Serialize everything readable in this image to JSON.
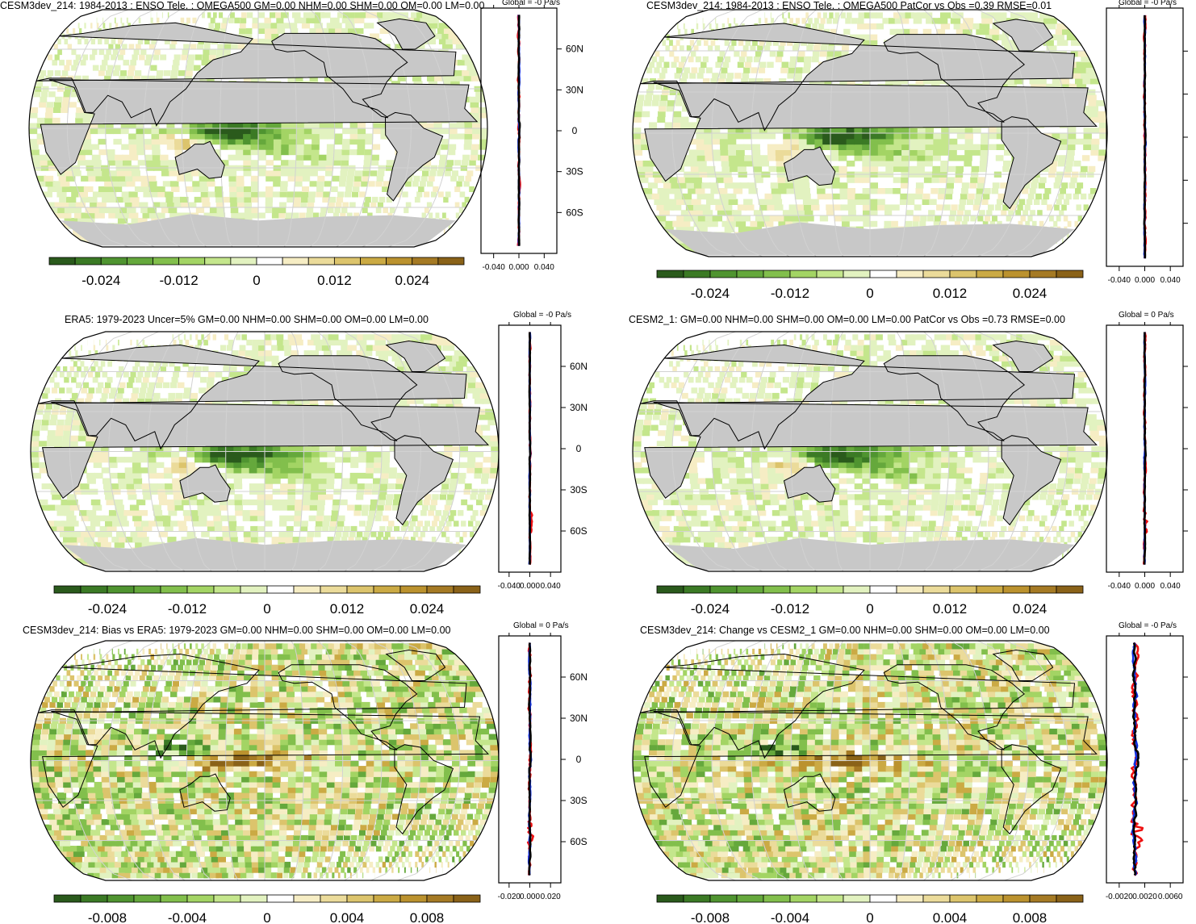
{
  "colors": {
    "land": "#c8c8c8",
    "ocean": "#ffffff",
    "grid": "#d2d2d2",
    "coast": "#000000",
    "line_black": "#000000",
    "line_blue": "#1030e0",
    "line_red": "#ee1010",
    "palette": [
      "#2a5a1c",
      "#3b7a25",
      "#4f9430",
      "#65a83c",
      "#82bf4c",
      "#a3d464",
      "#c4e68c",
      "#e2f2c0",
      "#ffffff",
      "#f6edc4",
      "#ebdb9a",
      "#dcc46c",
      "#cbaa44",
      "#bb922e",
      "#a57a24",
      "#8a6218"
    ]
  },
  "chart_data": [
    {
      "id": "p1",
      "type": "heatmap",
      "title": "CESM3dev_214: 1984-2013 : ENSO Tele. : OMEGA500 GM=0.00 NHM=0.00 SHM=0.00 OM=0.00 LM=0.00",
      "amp": 0.032,
      "colorbar_ticks": [
        "-0.024",
        "-0.012",
        "0",
        "0.012",
        "0.024"
      ],
      "profile_title": "Global = -0 Pa/s",
      "profile_xticks": [
        "-0.040",
        "0.000",
        "0.040"
      ],
      "profile_yticks": [
        "60N",
        "30N",
        "0",
        "30S",
        "60S"
      ],
      "profile_xlim": [
        -0.06,
        0.06
      ]
    },
    {
      "id": "p2",
      "type": "heatmap",
      "title": "CESM3dev_214: 1984-2013 : ENSO Tele. : OMEGA500 PatCor vs Obs =0.39 RMSE=0.01",
      "amp": 0.028,
      "colorbar_ticks": [
        "-0.024",
        "-0.012",
        "0",
        "0.012",
        "0.024"
      ],
      "profile_title": "Global = -0 Pa/s",
      "profile_xticks": [
        "-0.040",
        "0.000",
        "0.040"
      ],
      "profile_yticks": [],
      "profile_xlim": [
        -0.06,
        0.06
      ]
    },
    {
      "id": "p3",
      "type": "heatmap",
      "title": "ERA5: 1979-2023 Uncer=5% GM=0.00 NHM=0.00 SHM=0.00 OM=0.00 LM=0.00",
      "amp": 0.034,
      "colorbar_ticks": [
        "-0.024",
        "-0.012",
        "0",
        "0.012",
        "0.024"
      ],
      "profile_title": "Global = -0 Pa/s",
      "profile_xticks": [
        "-0.040",
        "0.000",
        "0.040"
      ],
      "profile_yticks": [
        "60N",
        "30N",
        "0",
        "30S",
        "60S"
      ],
      "profile_xlim": [
        -0.06,
        0.06
      ]
    },
    {
      "id": "p4",
      "type": "heatmap",
      "title": "CESM2_1: GM=0.00 NHM=0.00 SHM=0.00 OM=0.00 LM=0.00 PatCor vs Obs =0.73 RMSE=0.00",
      "amp": 0.03,
      "colorbar_ticks": [
        "-0.024",
        "-0.012",
        "0",
        "0.012",
        "0.024"
      ],
      "profile_title": "Global = 0 Pa/s",
      "profile_xticks": [
        "-0.040",
        "0.000",
        "0.040"
      ],
      "profile_yticks": [],
      "profile_xlim": [
        -0.06,
        0.06
      ]
    },
    {
      "id": "p5",
      "type": "heatmap",
      "title": "CESM3dev_214: Bias vs ERA5: 1979-2023 GM=0.00 NHM=0.00 SHM=0.00 OM=0.00 LM=0.00",
      "amp": 0.011,
      "colorbar_ticks": [
        "-0.008",
        "-0.004",
        "0",
        "0.004",
        "0.008"
      ],
      "profile_title": "Global = 0 Pa/s",
      "profile_xticks": [
        "-0.020",
        "0.000",
        "0.020"
      ],
      "profile_yticks": [
        "60N",
        "30N",
        "0",
        "30S",
        "60S"
      ],
      "profile_xlim": [
        -0.03,
        0.03
      ]
    },
    {
      "id": "p6",
      "type": "heatmap",
      "title": "CESM3dev_214: Change vs CESM2_1 GM=0.00 NHM=0.00 SHM=0.00 OM=0.00 LM=0.00",
      "amp": 0.011,
      "colorbar_ticks": [
        "-0.008",
        "-0.004",
        "0",
        "0.004",
        "0.008"
      ],
      "profile_title": "Global = -0 Pa/s",
      "profile_xticks": [
        "-0.0020",
        "0.0020",
        "0.0060"
      ],
      "profile_yticks": [],
      "profile_xlim": [
        -0.004,
        0.008
      ]
    }
  ]
}
